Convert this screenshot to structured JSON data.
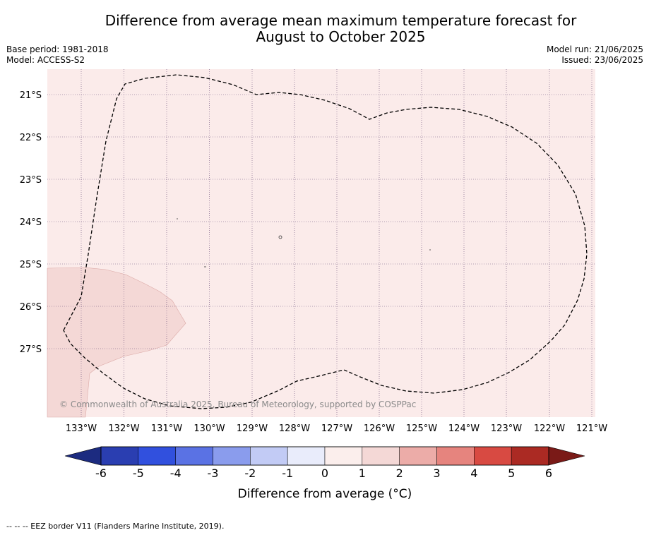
{
  "title": {
    "line1": "Difference from average mean maximum temperature forecast for",
    "line2": "August to October 2025"
  },
  "meta": {
    "base_period": "Base period: 1981-2018",
    "model": "Model: ACCESS-S2",
    "model_run": "Model run: 21/06/2025",
    "issued": "Issued: 23/06/2025"
  },
  "map": {
    "lon_labels": [
      "133°W",
      "132°W",
      "131°W",
      "130°W",
      "129°W",
      "128°W",
      "127°W",
      "126°W",
      "125°W",
      "124°W",
      "123°W",
      "122°W",
      "121°W"
    ],
    "lat_labels": [
      "21°S",
      "22°S",
      "23°S",
      "24°S",
      "25°S",
      "26°S",
      "27°S"
    ],
    "copyright": "© Commonwealth of Australia 2025, Bureau of Meteorology, supported by COSPPac",
    "fill_colors": {
      "band_0_1": "#fbebea",
      "band_1_2": "#f4d8d6"
    }
  },
  "colorbar": {
    "ticks": [
      "-6",
      "-5",
      "-4",
      "-3",
      "-2",
      "-1",
      "0",
      "1",
      "2",
      "3",
      "4",
      "5",
      "6"
    ],
    "colors": [
      "#2a3eb1",
      "#3150de",
      "#5a72e4",
      "#8a9ced",
      "#c2cbf5",
      "#e9ecfb",
      "#fbeeec",
      "#f4d8d6",
      "#ecaca8",
      "#e6847e",
      "#d84a42",
      "#ab2a23"
    ],
    "low_extend_color": "#1c2b80",
    "high_extend_color": "#7a1a17",
    "label": "Difference from average (°C)"
  },
  "footer": {
    "legend": "--  --  -- EEZ border V11 (Flanders Marine Institute, 2019)."
  }
}
